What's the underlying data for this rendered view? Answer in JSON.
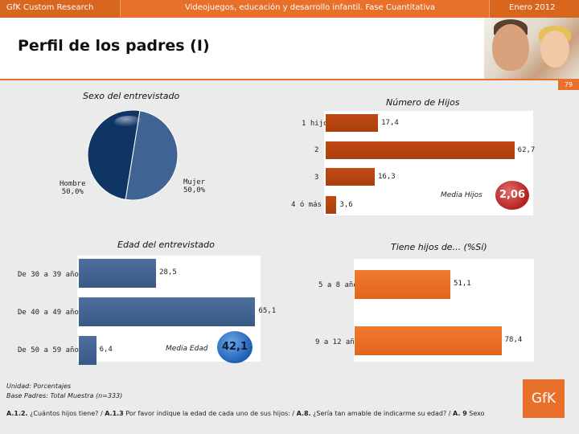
{
  "header": {
    "left": "GfK Custom Research",
    "center": "Videojuegos, educación y desarrollo infantil. Fase Cuantitativa",
    "right": "Enero 2012"
  },
  "page_title": "Perfil de los padres (I)",
  "page_number": "79",
  "colors": {
    "accent": "#e8702a",
    "blue": "#3a5a86",
    "pie_dark": "#0f3565",
    "red_bar": "#b5440f",
    "orange_bar": "#ea6f23"
  },
  "chart_data": [
    {
      "type": "pie",
      "title": "Sexo del entrevistado",
      "slices": [
        {
          "label": "Hombre",
          "value": 50.0,
          "display": "50,0%",
          "color": "#3f6494"
        },
        {
          "label": "Mujer",
          "value": 50.0,
          "display": "50,0%",
          "color": "#0f3565"
        }
      ]
    },
    {
      "type": "bar",
      "orientation": "horizontal",
      "title": "Número de Hijos",
      "categories": [
        "1 hijo",
        "2",
        "3",
        "4 ó más"
      ],
      "values": [
        17.4,
        62.7,
        16.3,
        3.6
      ],
      "display": [
        "17,4",
        "62,7",
        "16,3",
        "3,6"
      ],
      "xlim": [
        0,
        70
      ],
      "summary": {
        "label": "Media Hijos",
        "value": "2,06"
      }
    },
    {
      "type": "bar",
      "orientation": "horizontal",
      "title": "Edad del entrevistado",
      "categories": [
        "De 30 a 39 años",
        "De 40 a 49 años",
        "De 50 a 59 años"
      ],
      "values": [
        28.5,
        65.1,
        6.4
      ],
      "display": [
        "28,5",
        "65,1",
        "6,4"
      ],
      "xlim": [
        0,
        70
      ],
      "summary": {
        "label": "Media Edad",
        "value": "42,1"
      }
    },
    {
      "type": "bar",
      "orientation": "horizontal",
      "title": "Tiene hijos de... (%Sí)",
      "categories": [
        "5 a 8 años",
        "9 a 12 años"
      ],
      "values": [
        51.1,
        78.4
      ],
      "display": [
        "51,1",
        "78,4"
      ],
      "xlim": [
        0,
        85
      ]
    }
  ],
  "footnotes": {
    "unit": "Unidad: Porcentajes",
    "base": "Base Padres: Total Muestra (n=333)"
  },
  "question": {
    "q1_code": "A.1.2.",
    "q1_text": " ¿Cuántos hijos tiene? / ",
    "q2_code": "A.1.3",
    "q2_text": " Por favor indique la edad de cada uno de sus hijos: / ",
    "q3_code": "A.8.",
    "q3_text": " ¿Sería tan amable de indicarme su edad? / ",
    "q4_code": "A. 9",
    "q4_text": " Sexo"
  },
  "logo": "GfK"
}
